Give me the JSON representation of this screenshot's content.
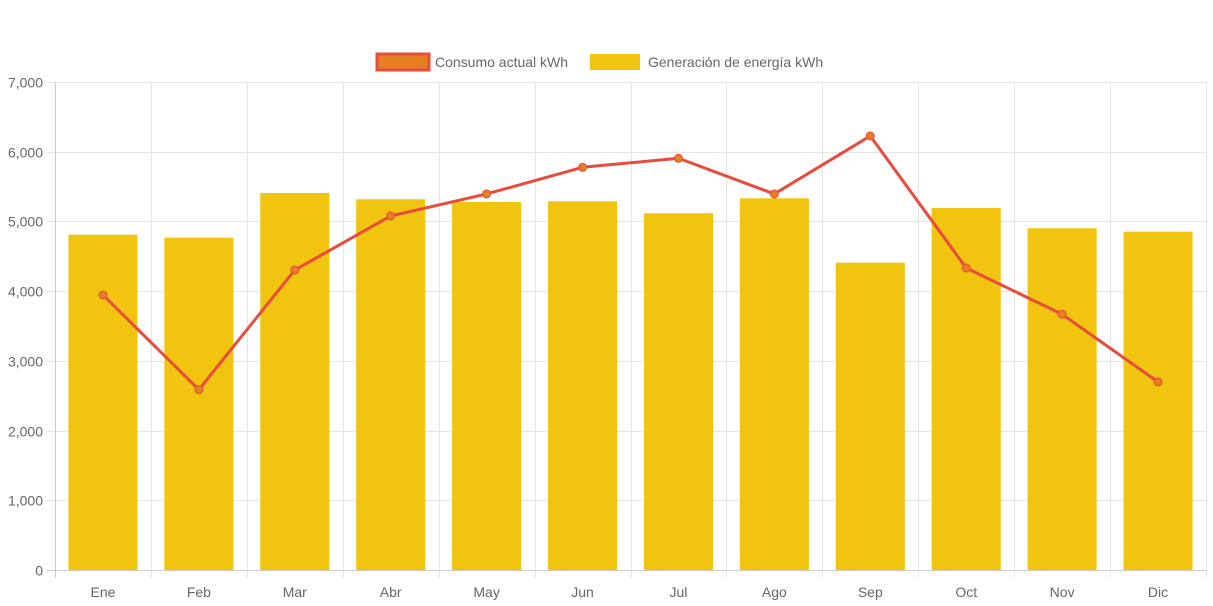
{
  "chart_data": {
    "type": "bar",
    "title": "",
    "xlabel": "",
    "ylabel": "",
    "categories": [
      "Ene",
      "Feb",
      "Mar",
      "Abr",
      "May",
      "Jun",
      "Jul",
      "Ago",
      "Sep",
      "Oct",
      "Nov",
      "Dic"
    ],
    "ylim": [
      0,
      7000
    ],
    "yticks": [
      0,
      1000,
      2000,
      3000,
      4000,
      5000,
      6000,
      7000
    ],
    "ytick_labels": [
      "0",
      "1,000",
      "2,000",
      "3,000",
      "4,000",
      "5,000",
      "6,000",
      "7,000"
    ],
    "grid": true,
    "legend_position": "top-center",
    "series": [
      {
        "name": "Consumo actual kWh",
        "type": "line",
        "color": "#E74C3C",
        "point_color": "#E67E22",
        "values": [
          3945,
          2587,
          4303,
          5078,
          5394,
          5777,
          5906,
          5394,
          6226,
          4332,
          3668,
          2697
        ]
      },
      {
        "name": "Generación de energía kWh",
        "type": "bar",
        "color": "#F1C40F",
        "values": [
          4810,
          4767,
          5408,
          5318,
          5279,
          5289,
          5117,
          5332,
          4409,
          5193,
          4902,
          4853
        ]
      }
    ]
  },
  "legend": [
    {
      "label": "Consumo actual kWh",
      "fill": "#E67E22",
      "stroke": "#E74C3C"
    },
    {
      "label": "Generación de energía kWh",
      "fill": "#F1C40F",
      "stroke": "#F1C40F"
    }
  ]
}
